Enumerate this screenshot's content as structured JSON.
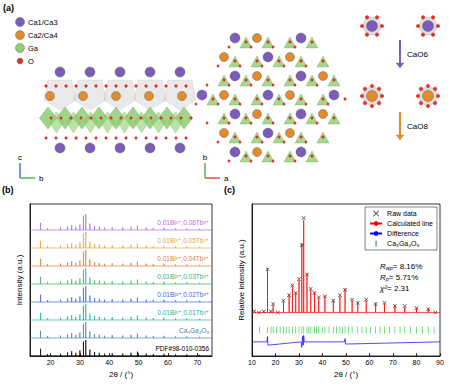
{
  "chart_data": [
    {
      "type": "line",
      "title": "(b)",
      "xlabel": "2θ / (°)",
      "ylabel": "Intensity (a.u.)",
      "xlim": [
        13,
        75
      ],
      "xticks": [
        20,
        30,
        40,
        50,
        60,
        70
      ],
      "ylim": [
        0,
        7.6
      ],
      "yticks": [],
      "tick_labels": "x",
      "grid": false,
      "x": [
        16.6,
        19.0,
        23.4,
        25.8,
        27.2,
        28.6,
        30.0,
        31.2,
        32.0,
        33.4,
        35.0,
        36.6,
        38.4,
        41.0,
        44.6,
        47.4,
        49.6,
        52.6,
        55.0,
        58.6,
        62.6,
        66.4,
        70.8
      ],
      "series": [
        {
          "name": "PDF#98-010-0356",
          "color": "#000000",
          "baseline": 0,
          "values": [
            0.36,
            0.1,
            0.12,
            0.18,
            0.24,
            0.16,
            0.28,
            0.72,
            0.8,
            0.32,
            0.2,
            0.16,
            0.12,
            0.14,
            0.12,
            0.16,
            0.22,
            0.12,
            0.1,
            0.11,
            0.08,
            0.08,
            0.06
          ]
        },
        {
          "name": "Ca₃Ga₄O₉",
          "color": "#4682b4",
          "baseline": 0.9,
          "values": [
            1.26,
            1.0,
            1.02,
            1.08,
            1.14,
            1.06,
            1.18,
            1.62,
            1.7,
            1.22,
            1.1,
            1.06,
            1.02,
            1.04,
            1.02,
            1.06,
            1.12,
            1.02,
            1.0,
            1.01,
            0.98,
            0.98,
            0.96
          ]
        },
        {
          "name": "0.01Bi³⁺,0.01Tb³⁺",
          "color": "#20b2aa",
          "baseline": 1.8,
          "values": [
            2.16,
            1.9,
            1.92,
            1.98,
            2.04,
            1.96,
            2.08,
            2.52,
            2.6,
            2.12,
            2.0,
            1.96,
            1.92,
            1.94,
            1.92,
            1.96,
            2.02,
            1.92,
            1.9,
            1.91,
            1.88,
            1.88,
            1.86
          ]
        },
        {
          "name": "0.01Bi³⁺,0.02Tb³⁺",
          "color": "#4169e1",
          "baseline": 2.7,
          "values": [
            3.06,
            2.8,
            2.82,
            2.88,
            2.94,
            2.86,
            2.98,
            3.42,
            3.5,
            3.02,
            2.9,
            2.86,
            2.82,
            2.84,
            2.82,
            2.86,
            2.92,
            2.82,
            2.8,
            2.81,
            2.78,
            2.78,
            2.76
          ]
        },
        {
          "name": "0.01Bi³⁺,0.03Tb³⁺",
          "color": "#3cb371",
          "baseline": 3.6,
          "values": [
            3.96,
            3.7,
            3.72,
            3.78,
            3.84,
            3.76,
            3.88,
            4.32,
            4.4,
            3.92,
            3.8,
            3.76,
            3.72,
            3.74,
            3.72,
            3.76,
            3.82,
            3.72,
            3.7,
            3.71,
            3.68,
            3.68,
            3.66
          ]
        },
        {
          "name": "0.01Bi³⁺,0.04Tb³⁺",
          "color": "#e07b39",
          "baseline": 4.5,
          "values": [
            4.86,
            4.6,
            4.62,
            4.68,
            4.74,
            4.66,
            4.78,
            5.22,
            5.3,
            4.82,
            4.7,
            4.66,
            4.62,
            4.64,
            4.62,
            4.66,
            4.72,
            4.62,
            4.6,
            4.61,
            4.58,
            4.58,
            4.56
          ]
        },
        {
          "name": "0.01Bi³⁺,0.05Tb³⁺",
          "color": "#e8a33d",
          "baseline": 5.4,
          "values": [
            5.76,
            5.5,
            5.52,
            5.58,
            5.64,
            5.56,
            5.68,
            6.12,
            6.2,
            5.72,
            5.6,
            5.56,
            5.52,
            5.54,
            5.52,
            5.56,
            5.62,
            5.52,
            5.5,
            5.51,
            5.48,
            5.48,
            5.46
          ]
        },
        {
          "name": "0.01Bi³⁺,0.06Tb³⁺",
          "color": "#b36ae2",
          "baseline": 6.3,
          "values": [
            6.66,
            6.4,
            6.42,
            6.48,
            6.54,
            6.46,
            6.58,
            7.02,
            7.1,
            6.62,
            6.5,
            6.46,
            6.42,
            6.44,
            6.42,
            6.46,
            6.52,
            6.42,
            6.4,
            6.41,
            6.38,
            6.38,
            6.36
          ]
        }
      ]
    },
    {
      "type": "line",
      "title": "(c)",
      "xlabel": "2θ / (°)",
      "ylabel": "Relative intensity (a.u.)",
      "xlim": [
        10,
        90
      ],
      "xticks": [
        10,
        20,
        30,
        40,
        50,
        60,
        70,
        80,
        90
      ],
      "ylim": [
        -0.3,
        1.1
      ],
      "yticks": [],
      "tick_labels": "x",
      "grid": false,
      "legend": "upper right",
      "annotations": [
        {
          "main": "R",
          "sub": "wp",
          "rest": "= 8.16%"
        },
        {
          "main": "R",
          "sub": "p",
          "rest": "= 5.71%"
        },
        {
          "main": "χ²",
          "rest": "= 2.31"
        }
      ],
      "series": [
        {
          "name": "Raw data",
          "type": "scatter",
          "marker": "x",
          "color": "#000000",
          "x": [
            11,
            13,
            15,
            16.6,
            18,
            19.0,
            21,
            23.4,
            25.8,
            27.2,
            28.6,
            30.0,
            31.2,
            32.0,
            33.4,
            35.0,
            36.6,
            38.4,
            41.0,
            44.6,
            47.4,
            49.6,
            52.6,
            55.0,
            58.6,
            62.6,
            66.4,
            70.8,
            75.0,
            80.0,
            85.0,
            88
          ],
          "values": [
            0.11,
            0.1,
            0.11,
            0.5,
            0.11,
            0.18,
            0.1,
            0.21,
            0.26,
            0.35,
            0.28,
            0.41,
            0.72,
            0.97,
            0.45,
            0.32,
            0.28,
            0.24,
            0.25,
            0.21,
            0.26,
            0.31,
            0.22,
            0.19,
            0.22,
            0.18,
            0.19,
            0.16,
            0.16,
            0.14,
            0.13,
            0.1
          ]
        },
        {
          "name": "Calculated line",
          "type": "line",
          "line_style": "solid",
          "color": "#ff0000",
          "baseline": 0.1,
          "x": [
            16.6,
            19.0,
            23.4,
            25.8,
            27.2,
            28.6,
            30.0,
            31.2,
            32.0,
            33.4,
            35.0,
            36.6,
            38.4,
            41.0,
            44.6,
            47.4,
            49.6,
            52.6,
            55.0,
            58.6,
            62.6,
            66.4,
            70.8,
            75.0,
            80.0,
            85.0
          ],
          "values": [
            0.51,
            0.17,
            0.2,
            0.27,
            0.34,
            0.29,
            0.4,
            0.74,
            0.95,
            0.46,
            0.31,
            0.29,
            0.23,
            0.25,
            0.22,
            0.25,
            0.32,
            0.21,
            0.2,
            0.21,
            0.19,
            0.18,
            0.17,
            0.15,
            0.14,
            0.14
          ]
        },
        {
          "name": "Difference",
          "type": "line",
          "line_style": "solid",
          "color": "#0000ff",
          "x": [
            10,
            16.4,
            16.6,
            16.8,
            30.9,
            31.2,
            31.5,
            31.8,
            32.0,
            32.3,
            49.4,
            49.6,
            49.8,
            90
          ],
          "values": [
            -0.17,
            -0.17,
            -0.12,
            -0.2,
            -0.17,
            -0.22,
            -0.12,
            -0.2,
            -0.11,
            -0.17,
            -0.17,
            -0.14,
            -0.19,
            -0.17
          ]
        },
        {
          "name": "Ca₃Ga₄O₉",
          "type": "scatter",
          "marker": "vline",
          "color": "#2ecc40",
          "x": [
            13.2,
            16.6,
            18.1,
            19.0,
            20.5,
            22.0,
            23.4,
            24.6,
            25.8,
            27.2,
            28.6,
            30.0,
            31.2,
            32.0,
            33.4,
            34.2,
            35.0,
            36.6,
            37.5,
            38.4,
            40.0,
            41.0,
            42.8,
            44.6,
            46.0,
            47.4,
            48.5,
            49.6,
            51.0,
            52.6,
            55.0,
            56.8,
            58.6,
            60.5,
            62.6,
            64.5,
            66.4,
            68.5,
            70.8,
            73.0,
            75.0,
            77.5,
            80.0,
            82.5,
            85.0,
            87.5
          ],
          "values": [
            -0.06,
            -0.06,
            -0.06,
            -0.06,
            -0.06,
            -0.06,
            -0.06,
            -0.06,
            -0.06,
            -0.06,
            -0.06,
            -0.06,
            -0.06,
            -0.06,
            -0.06,
            -0.06,
            -0.06,
            -0.06,
            -0.06,
            -0.06,
            -0.06,
            -0.06,
            -0.06,
            -0.06,
            -0.06,
            -0.06,
            -0.06,
            -0.06,
            -0.06,
            -0.06,
            -0.06,
            -0.06,
            -0.06,
            -0.06,
            -0.06,
            -0.06,
            -0.06,
            -0.06,
            -0.06,
            -0.06,
            -0.06,
            -0.06,
            -0.06,
            -0.06,
            -0.06,
            -0.06
          ]
        }
      ]
    }
  ],
  "panel_a": {
    "label": "(a)",
    "atoms": [
      {
        "name": "Ca1/Ca3",
        "color": "#7b5cb8"
      },
      {
        "name": "Ca2/Ca4",
        "color": "#e08b2e"
      },
      {
        "name": "Ga",
        "color": "#8fce72"
      },
      {
        "name": "O",
        "color": "#e0302a"
      }
    ],
    "axes_side_view": [
      "c",
      "b"
    ],
    "axes_top_view": [
      "b",
      "a"
    ],
    "polyhedra": [
      {
        "label": "CaO6",
        "color": "#7b5cb8"
      },
      {
        "label": "CaO8",
        "color": "#e08b2e"
      }
    ]
  }
}
